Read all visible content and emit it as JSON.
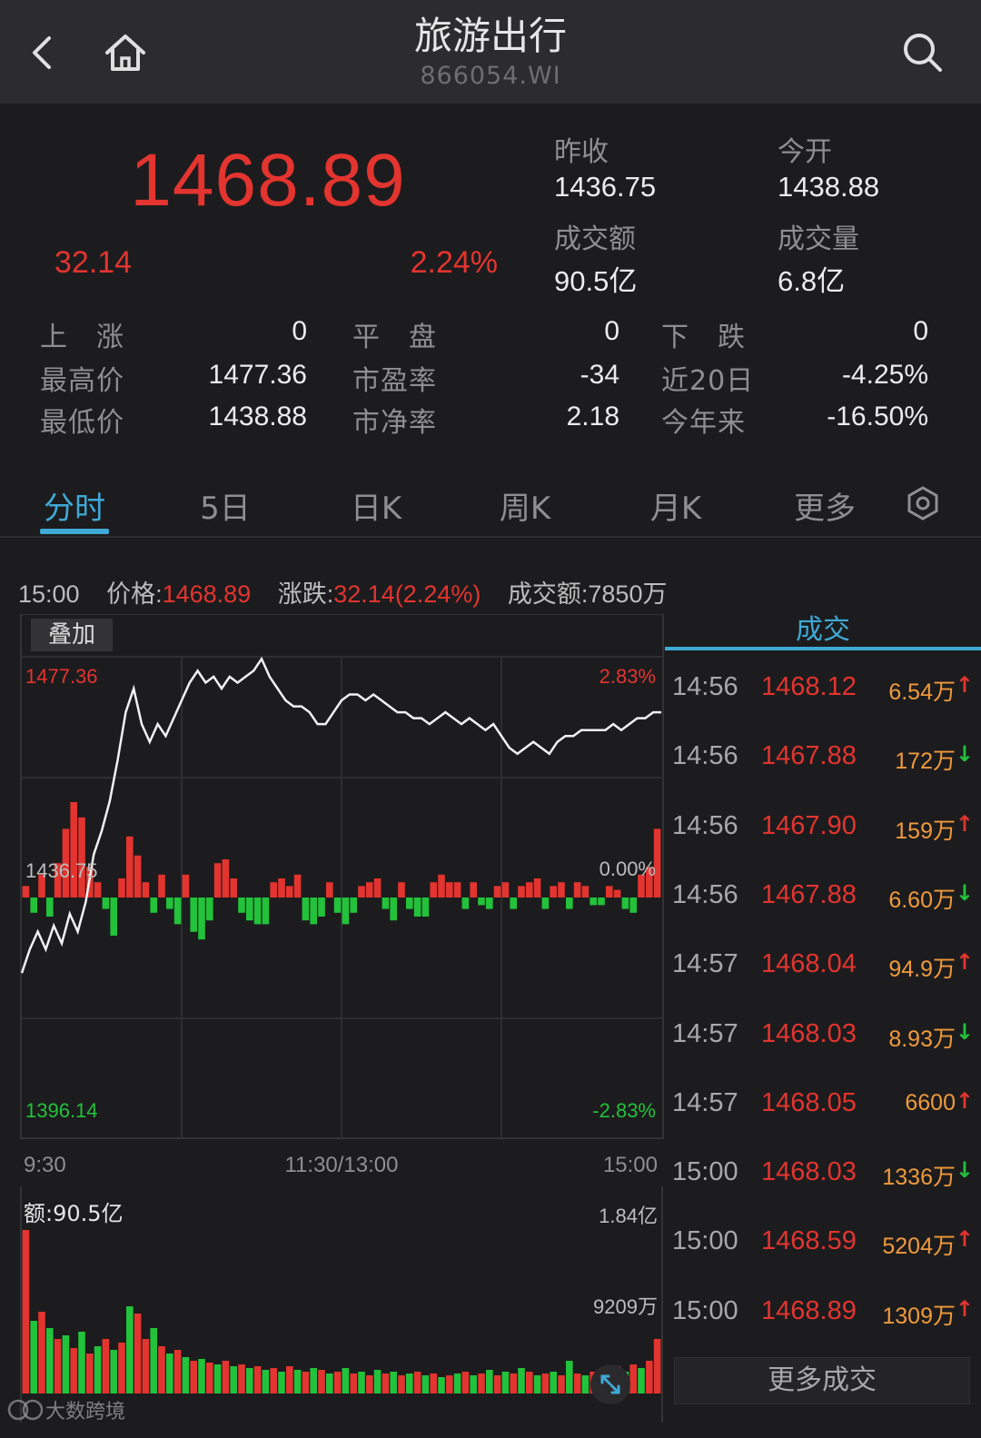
{
  "nav": {
    "title": "旅游出行",
    "code": "866054.WI"
  },
  "quote": {
    "price": "1468.89",
    "change": "32.14",
    "change_pct": "2.24%",
    "prev_close_label": "昨收",
    "prev_close": "1436.75",
    "open_label": "今开",
    "open": "1438.88",
    "turnover_label": "成交额",
    "turnover": "90.5亿",
    "volume_label": "成交量",
    "volume": "6.8亿"
  },
  "stats": [
    {
      "label": "上　涨",
      "value": "0"
    },
    {
      "label": "平　盘",
      "value": "0"
    },
    {
      "label": "下　跌",
      "value": "0"
    },
    {
      "label": "最高价",
      "value": "1477.36"
    },
    {
      "label": "市盈率",
      "value": "-34"
    },
    {
      "label": "近20日",
      "value": "-4.25%"
    },
    {
      "label": "最低价",
      "value": "1438.88"
    },
    {
      "label": "市净率",
      "value": "2.18"
    },
    {
      "label": "今年来",
      "value": "-16.50%"
    }
  ],
  "tabs": [
    "分时",
    "5日",
    "日K",
    "周K",
    "月K",
    "更多"
  ],
  "info_line": {
    "time": "15:00",
    "price_label": "价格:",
    "price": "1468.89",
    "chg_label": "涨跌:",
    "chg": "32.14(2.24%)",
    "amt_label": "成交额:",
    "amt": "7850万"
  },
  "overlay_label": "叠加",
  "chart_data": {
    "type": "line",
    "y_left_ticks": [
      "1477.36",
      "1436.75",
      "1396.14"
    ],
    "y_right_ticks": [
      "2.83%",
      "0.00%",
      "-2.83%"
    ],
    "x_ticks": [
      "9:30",
      "11:30/13:00",
      "15:00"
    ],
    "ylim": [
      1396.14,
      1477.36
    ],
    "prev_close": 1436.75,
    "series": [
      {
        "values": [
          1424,
          1428,
          1431,
          1428,
          1432,
          1429,
          1434,
          1431,
          1436,
          1444,
          1448,
          1453,
          1460,
          1468,
          1472,
          1466,
          1463,
          1466,
          1464,
          1467,
          1470,
          1473,
          1475,
          1473,
          1474,
          1472,
          1474,
          1473,
          1474,
          1475,
          1477,
          1474,
          1472,
          1470,
          1469,
          1469,
          1468,
          1466,
          1466,
          1468,
          1470,
          1471,
          1471,
          1470,
          1471,
          1470,
          1469,
          1468,
          1468,
          1467,
          1467,
          1466,
          1467,
          1468,
          1467,
          1466,
          1467,
          1466,
          1465,
          1466,
          1464,
          1462,
          1461,
          1462,
          1463,
          1462,
          1461,
          1463,
          1464,
          1464,
          1465,
          1465,
          1465,
          1465,
          1466,
          1465,
          1466,
          1467,
          1467,
          1468,
          1468
        ]
      }
    ],
    "volume_bars": [
      {
        "v": 3,
        "d": 1
      },
      {
        "v": 4,
        "d": -1
      },
      {
        "v": 6,
        "d": 1
      },
      {
        "v": 5,
        "d": -1
      },
      {
        "v": 9,
        "d": 1
      },
      {
        "v": 18,
        "d": 1
      },
      {
        "v": 25,
        "d": 1
      },
      {
        "v": 21,
        "d": 1
      },
      {
        "v": 8,
        "d": 1
      },
      {
        "v": 4,
        "d": 1
      },
      {
        "v": 3,
        "d": -1
      },
      {
        "v": 10,
        "d": -1
      },
      {
        "v": 5,
        "d": 1
      },
      {
        "v": 16,
        "d": 1
      },
      {
        "v": 11,
        "d": 1
      },
      {
        "v": 4,
        "d": 1
      },
      {
        "v": 4,
        "d": -1
      },
      {
        "v": 6,
        "d": 1
      },
      {
        "v": 3,
        "d": -1
      },
      {
        "v": 7,
        "d": -1
      },
      {
        "v": 6,
        "d": 1
      },
      {
        "v": 9,
        "d": -1
      },
      {
        "v": 11,
        "d": -1
      },
      {
        "v": 6,
        "d": -1
      },
      {
        "v": 9,
        "d": 1
      },
      {
        "v": 10,
        "d": 1
      },
      {
        "v": 5,
        "d": 1
      },
      {
        "v": 4,
        "d": -1
      },
      {
        "v": 6,
        "d": -1
      },
      {
        "v": 7,
        "d": -1
      },
      {
        "v": 7,
        "d": -1
      },
      {
        "v": 4,
        "d": 1
      },
      {
        "v": 5,
        "d": 1
      },
      {
        "v": 3,
        "d": 1
      },
      {
        "v": 6,
        "d": 1
      },
      {
        "v": 6,
        "d": -1
      },
      {
        "v": 7,
        "d": -1
      },
      {
        "v": 5,
        "d": -1
      },
      {
        "v": 4,
        "d": 1
      },
      {
        "v": 4,
        "d": -1
      },
      {
        "v": 7,
        "d": -1
      },
      {
        "v": 4,
        "d": -1
      },
      {
        "v": 3,
        "d": 1
      },
      {
        "v": 4,
        "d": 1
      },
      {
        "v": 5,
        "d": 1
      },
      {
        "v": 3,
        "d": -1
      },
      {
        "v": 6,
        "d": -1
      },
      {
        "v": 4,
        "d": 1
      },
      {
        "v": 3,
        "d": -1
      },
      {
        "v": 5,
        "d": -1
      },
      {
        "v": 5,
        "d": -1
      },
      {
        "v": 4,
        "d": 1
      },
      {
        "v": 6,
        "d": 1
      },
      {
        "v": 4,
        "d": 1
      },
      {
        "v": 4,
        "d": 1
      },
      {
        "v": 3,
        "d": -1
      },
      {
        "v": 4,
        "d": 1
      },
      {
        "v": 2,
        "d": -1
      },
      {
        "v": 3,
        "d": -1
      },
      {
        "v": 3,
        "d": 1
      },
      {
        "v": 4,
        "d": 1
      },
      {
        "v": 3,
        "d": -1
      },
      {
        "v": 3,
        "d": 1
      },
      {
        "v": 4,
        "d": 1
      },
      {
        "v": 5,
        "d": 1
      },
      {
        "v": 3,
        "d": -1
      },
      {
        "v": 3,
        "d": 1
      },
      {
        "v": 4,
        "d": 1
      },
      {
        "v": 3,
        "d": -1
      },
      {
        "v": 4,
        "d": 1
      },
      {
        "v": 3,
        "d": 1
      },
      {
        "v": 2,
        "d": -1
      },
      {
        "v": 2,
        "d": -1
      },
      {
        "v": 3,
        "d": 1
      },
      {
        "v": 2,
        "d": 1
      },
      {
        "v": 3,
        "d": -1
      },
      {
        "v": 4,
        "d": -1
      },
      {
        "v": 6,
        "d": 1
      },
      {
        "v": 8,
        "d": 1
      },
      {
        "v": 18,
        "d": 1
      }
    ],
    "volume_panel": {
      "label": "额:90.5亿",
      "ticks": [
        "1.84亿",
        "9209万"
      ],
      "bars": [
        {
          "v": 90,
          "d": 1
        },
        {
          "v": 40,
          "d": -1
        },
        {
          "v": 45,
          "d": 1
        },
        {
          "v": 36,
          "d": -1
        },
        {
          "v": 30,
          "d": 1
        },
        {
          "v": 32,
          "d": -1
        },
        {
          "v": 25,
          "d": 1
        },
        {
          "v": 34,
          "d": -1
        },
        {
          "v": 22,
          "d": 1
        },
        {
          "v": 26,
          "d": -1
        },
        {
          "v": 30,
          "d": 1
        },
        {
          "v": 24,
          "d": -1
        },
        {
          "v": 28,
          "d": 1
        },
        {
          "v": 48,
          "d": -1
        },
        {
          "v": 44,
          "d": 1
        },
        {
          "v": 30,
          "d": 1
        },
        {
          "v": 36,
          "d": -1
        },
        {
          "v": 26,
          "d": 1
        },
        {
          "v": 22,
          "d": -1
        },
        {
          "v": 24,
          "d": 1
        },
        {
          "v": 20,
          "d": -1
        },
        {
          "v": 18,
          "d": 1
        },
        {
          "v": 19,
          "d": -1
        },
        {
          "v": 17,
          "d": 1
        },
        {
          "v": 16,
          "d": -1
        },
        {
          "v": 18,
          "d": 1
        },
        {
          "v": 15,
          "d": -1
        },
        {
          "v": 16,
          "d": 1
        },
        {
          "v": 14,
          "d": -1
        },
        {
          "v": 15,
          "d": 1
        },
        {
          "v": 13,
          "d": -1
        },
        {
          "v": 14,
          "d": 1
        },
        {
          "v": 12,
          "d": -1
        },
        {
          "v": 15,
          "d": 1
        },
        {
          "v": 13,
          "d": -1
        },
        {
          "v": 12,
          "d": 1
        },
        {
          "v": 14,
          "d": -1
        },
        {
          "v": 13,
          "d": 1
        },
        {
          "v": 11,
          "d": -1
        },
        {
          "v": 12,
          "d": 1
        },
        {
          "v": 14,
          "d": -1
        },
        {
          "v": 11,
          "d": 1
        },
        {
          "v": 12,
          "d": -1
        },
        {
          "v": 10,
          "d": 1
        },
        {
          "v": 13,
          "d": -1
        },
        {
          "v": 11,
          "d": 1
        },
        {
          "v": 12,
          "d": -1
        },
        {
          "v": 10,
          "d": 1
        },
        {
          "v": 11,
          "d": -1
        },
        {
          "v": 12,
          "d": 1
        },
        {
          "v": 10,
          "d": -1
        },
        {
          "v": 11,
          "d": 1
        },
        {
          "v": 9,
          "d": -1
        },
        {
          "v": 10,
          "d": 1
        },
        {
          "v": 11,
          "d": -1
        },
        {
          "v": 12,
          "d": 1
        },
        {
          "v": 10,
          "d": -1
        },
        {
          "v": 11,
          "d": 1
        },
        {
          "v": 13,
          "d": -1
        },
        {
          "v": 10,
          "d": 1
        },
        {
          "v": 12,
          "d": -1
        },
        {
          "v": 11,
          "d": 1
        },
        {
          "v": 14,
          "d": -1
        },
        {
          "v": 12,
          "d": 1
        },
        {
          "v": 10,
          "d": -1
        },
        {
          "v": 11,
          "d": 1
        },
        {
          "v": 12,
          "d": -1
        },
        {
          "v": 10,
          "d": 1
        },
        {
          "v": 18,
          "d": -1
        },
        {
          "v": 11,
          "d": 1
        },
        {
          "v": 10,
          "d": -1
        },
        {
          "v": 12,
          "d": 1
        },
        {
          "v": 11,
          "d": -1
        },
        {
          "v": 13,
          "d": 1
        },
        {
          "v": 15,
          "d": 1
        },
        {
          "v": 12,
          "d": -1
        },
        {
          "v": 16,
          "d": 1
        },
        {
          "v": 14,
          "d": -1
        },
        {
          "v": 18,
          "d": 1
        },
        {
          "v": 30,
          "d": 1
        }
      ]
    }
  },
  "trades_header": "成交",
  "trades": [
    {
      "time": "14:56",
      "price": "1468.12",
      "vol": "6.54万",
      "dir": "up"
    },
    {
      "time": "14:56",
      "price": "1467.88",
      "vol": "172万",
      "dir": "down"
    },
    {
      "time": "14:56",
      "price": "1467.90",
      "vol": "159万",
      "dir": "up"
    },
    {
      "time": "14:56",
      "price": "1467.88",
      "vol": "6.60万",
      "dir": "down"
    },
    {
      "time": "14:57",
      "price": "1468.04",
      "vol": "94.9万",
      "dir": "up"
    },
    {
      "time": "14:57",
      "price": "1468.03",
      "vol": "8.93万",
      "dir": "down"
    },
    {
      "time": "14:57",
      "price": "1468.05",
      "vol": "6600",
      "dir": "up"
    },
    {
      "time": "15:00",
      "price": "1468.03",
      "vol": "1336万",
      "dir": "down"
    },
    {
      "time": "15:00",
      "price": "1468.59",
      "vol": "5204万",
      "dir": "up"
    },
    {
      "time": "15:00",
      "price": "1468.89",
      "vol": "1309万",
      "dir": "up"
    }
  ],
  "more_trades": "更多成交",
  "watermark": "大数跨境",
  "colors": {
    "up": "#e3342f",
    "down": "#22c23b",
    "accent": "#3fa9d6",
    "volume": "#f09a3c"
  }
}
